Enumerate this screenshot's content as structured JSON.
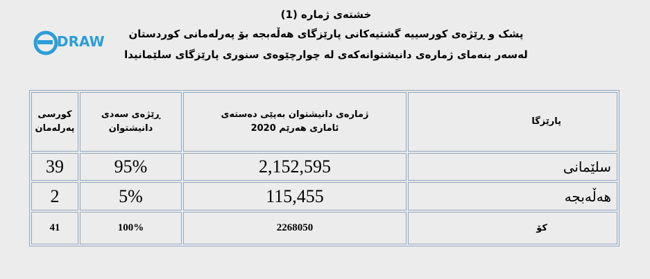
{
  "header": {
    "title_lines": [
      "خشتەی ژمارە (1)",
      "پشک و ڕێژەی کورسییە گشتیەکانی پارێزگای هەڵەبجە بۆ پەرلەمانی کوردستان",
      "لەسەر بنەمای ژمارەی دانیشتوانەکەی لە چوارچێوەی سنوری پارێزگای سلێمانیدا"
    ]
  },
  "logo": {
    "text": "DRAW"
  },
  "table": {
    "columns": [
      [
        "پارێزگا"
      ],
      [
        "ژمارەی دانیشتوان بەپێی دەستەی",
        "ئاماری هەرێم 2020"
      ],
      [
        "ڕێژەی سەدی",
        "دانیشتوان"
      ],
      [
        "کورسی",
        "پەرلەمان"
      ]
    ],
    "rows": [
      [
        "سلێمانی",
        "2,152,595",
        "95%",
        "39"
      ],
      [
        "هەڵەبجە",
        "115,455",
        "5%",
        "2"
      ],
      [
        "کۆ",
        "2268050",
        "100%",
        "41"
      ]
    ]
  }
}
